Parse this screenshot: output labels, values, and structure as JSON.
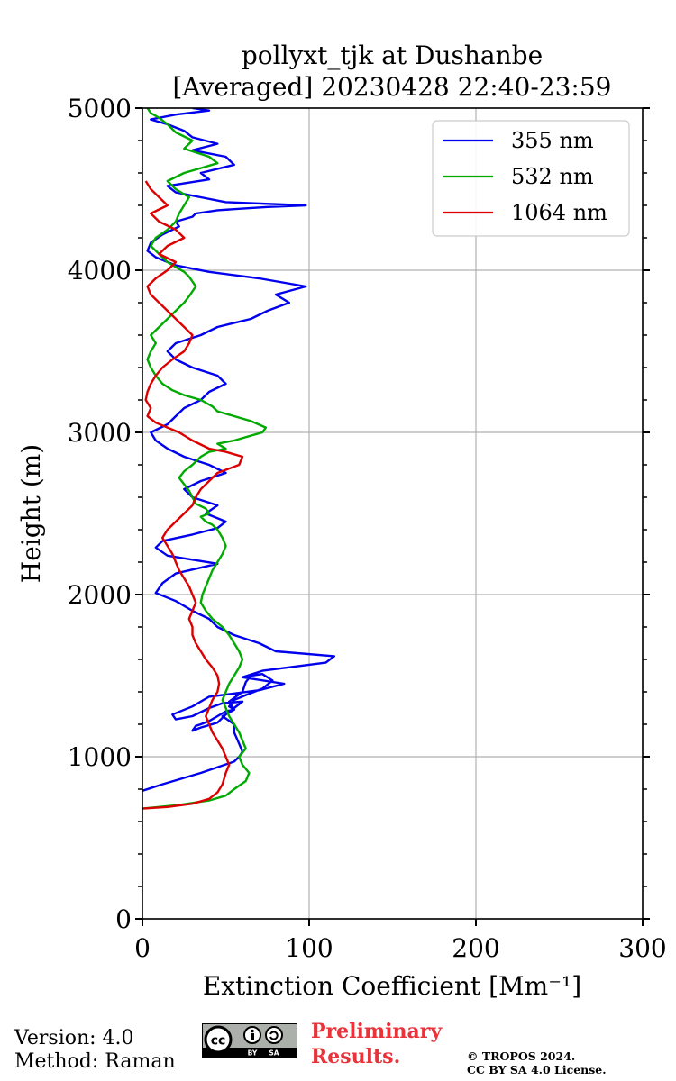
{
  "chart_data": {
    "type": "line",
    "title": "pollyxt_tjk at Dushanbe",
    "subtitle": "[Averaged] 20230428 22:40-23:59",
    "xlabel": "Extinction Coefficient [Mm⁻¹]",
    "ylabel": "Height (m)",
    "xlim": [
      0,
      300
    ],
    "ylim": [
      0,
      5000
    ],
    "xticks": [
      "0",
      "100",
      "200",
      "300"
    ],
    "yticks": [
      "0",
      "1000",
      "2000",
      "3000",
      "4000",
      "5000"
    ],
    "grid": true,
    "legend_position": "top-right",
    "series": [
      {
        "name": "355 nm",
        "color": "#0000ee",
        "x": [
          0,
          12,
          35,
          55,
          58,
          60,
          58,
          55,
          55,
          48,
          55,
          52,
          60,
          62,
          65,
          72,
          78,
          72,
          62,
          55,
          52,
          55,
          50,
          45,
          40,
          35,
          32,
          30,
          35,
          45,
          50,
          55,
          60,
          48,
          40,
          30,
          20,
          18,
          30,
          40,
          70,
          85,
          60,
          72,
          110,
          115,
          80,
          70,
          55,
          45,
          40,
          30,
          20,
          8,
          12,
          20,
          45,
          15,
          8,
          12,
          30,
          45,
          50,
          38,
          45,
          30,
          25,
          35,
          50,
          40,
          25,
          15,
          8,
          5,
          15,
          20,
          25,
          35,
          40,
          50,
          45,
          30,
          20,
          15,
          20,
          35,
          45,
          65,
          75,
          88,
          80,
          98,
          70,
          40,
          20,
          8,
          3,
          5,
          12,
          22,
          20,
          30,
          32,
          45,
          60,
          75,
          98,
          50,
          35,
          20,
          15,
          40,
          35,
          55,
          50,
          30,
          45,
          30,
          25,
          15,
          5,
          20,
          40,
          30
        ],
        "y": [
          790,
          830,
          900,
          970,
          1000,
          1030,
          1080,
          1150,
          1200,
          1250,
          1290,
          1340,
          1400,
          1460,
          1500,
          1510,
          1470,
          1420,
          1380,
          1350,
          1310,
          1290,
          1280,
          1250,
          1220,
          1200,
          1190,
          1160,
          1180,
          1210,
          1260,
          1300,
          1340,
          1330,
          1300,
          1250,
          1230,
          1260,
          1310,
          1370,
          1410,
          1450,
          1490,
          1530,
          1580,
          1620,
          1650,
          1700,
          1750,
          1800,
          1850,
          1900,
          1960,
          2010,
          2070,
          2130,
          2190,
          2240,
          2290,
          2330,
          2370,
          2410,
          2450,
          2500,
          2550,
          2600,
          2650,
          2700,
          2750,
          2800,
          2850,
          2900,
          2950,
          3000,
          3050,
          3100,
          3150,
          3200,
          3250,
          3300,
          3350,
          3400,
          3450,
          3500,
          3550,
          3600,
          3650,
          3700,
          3750,
          3800,
          3850,
          3900,
          3950,
          3990,
          4030,
          4080,
          4120,
          4170,
          4220,
          4270,
          4300,
          4330,
          4350,
          4370,
          4380,
          4390,
          4400,
          4420,
          4450,
          4480,
          4520,
          4560,
          4600,
          4650,
          4700,
          4740,
          4780,
          4820,
          4860,
          4900,
          4930,
          4960,
          4985,
          5000
        ]
      },
      {
        "name": "532 nm",
        "color": "#00aa00",
        "x": [
          0,
          20,
          40,
          50,
          55,
          62,
          64,
          60,
          58,
          62,
          60,
          58,
          55,
          52,
          50,
          48,
          50,
          52,
          55,
          58,
          60,
          58,
          55,
          52,
          48,
          42,
          38,
          35,
          36,
          38,
          40,
          42,
          45,
          48,
          50,
          48,
          45,
          42,
          38,
          35,
          40,
          38,
          32,
          30,
          28,
          25,
          22,
          25,
          30,
          35,
          40,
          50,
          45,
          55,
          65,
          72,
          74,
          65,
          55,
          45,
          42,
          35,
          25,
          18,
          12,
          8,
          5,
          3,
          5,
          8,
          5,
          10,
          15,
          20,
          25,
          28,
          30,
          32,
          30,
          28,
          25,
          20,
          15,
          10,
          5,
          8,
          15,
          20,
          22,
          25,
          28,
          20,
          15,
          25,
          35,
          45,
          40,
          25,
          30,
          20,
          15,
          10,
          5,
          3
        ],
        "y": [
          680,
          700,
          730,
          760,
          800,
          850,
          900,
          950,
          1000,
          1050,
          1100,
          1150,
          1200,
          1250,
          1300,
          1350,
          1400,
          1450,
          1500,
          1550,
          1600,
          1650,
          1700,
          1750,
          1800,
          1850,
          1900,
          1950,
          2000,
          2050,
          2100,
          2150,
          2200,
          2250,
          2300,
          2350,
          2400,
          2430,
          2450,
          2480,
          2500,
          2530,
          2560,
          2600,
          2640,
          2680,
          2720,
          2760,
          2800,
          2850,
          2880,
          2900,
          2930,
          2950,
          2980,
          3000,
          3030,
          3070,
          3100,
          3130,
          3160,
          3200,
          3230,
          3260,
          3300,
          3350,
          3400,
          3450,
          3500,
          3550,
          3600,
          3650,
          3700,
          3750,
          3800,
          3840,
          3870,
          3900,
          3930,
          3960,
          3990,
          4020,
          4050,
          4100,
          4150,
          4200,
          4250,
          4300,
          4350,
          4400,
          4450,
          4500,
          4550,
          4600,
          4630,
          4660,
          4700,
          4750,
          4800,
          4850,
          4900,
          4940,
          4970,
          5000
        ]
      },
      {
        "name": "1064 nm",
        "color": "#dd0000",
        "x": [
          0,
          15,
          30,
          40,
          45,
          48,
          50,
          52,
          50,
          48,
          45,
          42,
          40,
          38,
          40,
          42,
          45,
          46,
          45,
          42,
          38,
          35,
          32,
          30,
          30,
          28,
          30,
          32,
          30,
          28,
          25,
          22,
          20,
          18,
          15,
          12,
          15,
          20,
          25,
          30,
          32,
          35,
          40,
          45,
          58,
          60,
          50,
          40,
          30,
          22,
          15,
          8,
          3,
          5,
          2,
          3,
          5,
          8,
          12,
          18,
          25,
          28,
          30,
          25,
          20,
          15,
          10,
          5,
          3,
          8,
          15,
          20,
          10,
          15,
          25,
          20,
          10,
          5,
          15,
          10,
          5,
          2
        ],
        "y": [
          680,
          690,
          710,
          740,
          780,
          830,
          900,
          950,
          1000,
          1050,
          1100,
          1150,
          1200,
          1250,
          1300,
          1350,
          1400,
          1450,
          1500,
          1550,
          1600,
          1650,
          1700,
          1750,
          1800,
          1850,
          1900,
          1950,
          2000,
          2050,
          2100,
          2150,
          2200,
          2250,
          2300,
          2350,
          2400,
          2450,
          2500,
          2550,
          2600,
          2650,
          2700,
          2750,
          2800,
          2850,
          2880,
          2900,
          2950,
          3000,
          3030,
          3060,
          3100,
          3150,
          3200,
          3250,
          3300,
          3350,
          3400,
          3450,
          3500,
          3550,
          3600,
          3650,
          3700,
          3750,
          3800,
          3850,
          3900,
          3950,
          4000,
          4050,
          4100,
          4150,
          4200,
          4250,
          4300,
          4350,
          4400,
          4450,
          4500,
          4550
        ]
      }
    ]
  },
  "footer": {
    "version": "Version: 4.0",
    "method": "Method: Raman",
    "prelim_line1": "Preliminary",
    "prelim_line2": "Results.",
    "copyright_line1": "© TROPOS 2024.",
    "copyright_line2": "CC BY SA 4.0 License.",
    "badge_by": "BY",
    "badge_sa": "SA"
  }
}
